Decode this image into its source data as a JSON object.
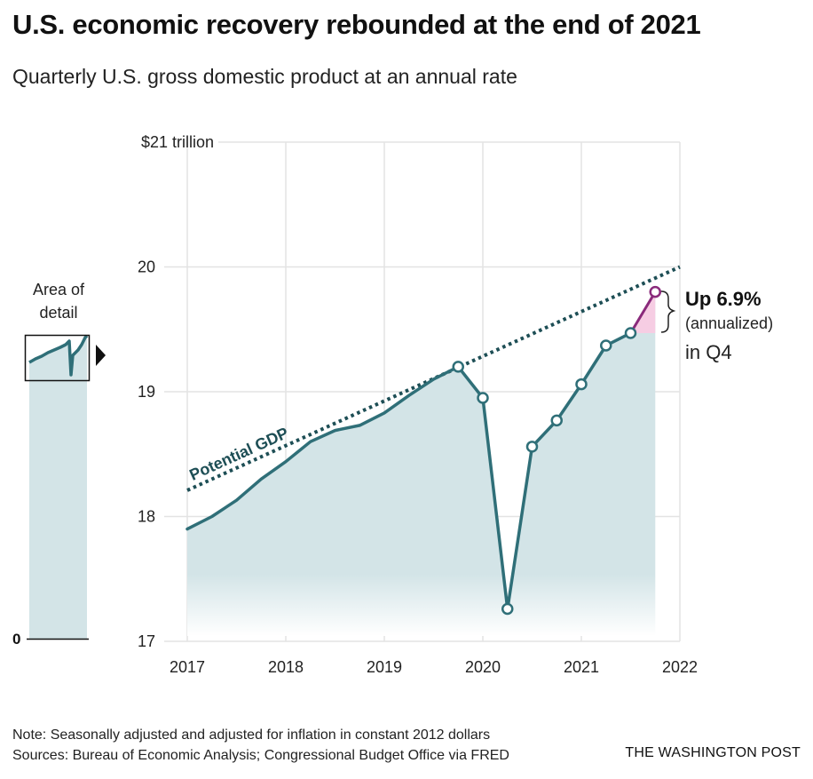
{
  "title": "U.S. economic recovery rebounded at the end of 2021",
  "subtitle": "Quarterly U.S. gross domestic product at an annual rate",
  "note": "Note: Seasonally adjusted and adjusted for inflation in constant 2012 dollars",
  "sources": "Sources: Bureau of Economic Analysis; Congressional Budget Office via FRED",
  "credit": "THE WASHINGTON POST",
  "colors": {
    "area": "#d3e4e7",
    "line": "#2f6f78",
    "potential": "#1d4e55",
    "highlight": "#8a2a7b",
    "highlight_fill": "#f6cde3",
    "grid": "#e3e3e3"
  },
  "chart_data": {
    "type": "area",
    "ylabel": "",
    "ylim": [
      17,
      21
    ],
    "xlim": [
      2017,
      2022
    ],
    "y_ticks": [
      {
        "value": 21,
        "label": "$21 trillion"
      },
      {
        "value": 20,
        "label": "20"
      },
      {
        "value": 19,
        "label": "19"
      },
      {
        "value": 18,
        "label": "18"
      },
      {
        "value": 17,
        "label": "17"
      }
    ],
    "x_ticks": [
      "2017",
      "2018",
      "2019",
      "2020",
      "2021",
      "2022"
    ],
    "series": [
      {
        "type": "area",
        "x": [
          "2017 Q1",
          "2017 Q2",
          "2017 Q3",
          "2017 Q4",
          "2018 Q1",
          "2018 Q2",
          "2018 Q3",
          "2018 Q4",
          "2019 Q1",
          "2019 Q2",
          "2019 Q3",
          "2019 Q4",
          "2020 Q1",
          "2020 Q2",
          "2020 Q3",
          "2020 Q4",
          "2021 Q1",
          "2021 Q2",
          "2021 Q3",
          "2021 Q4"
        ],
        "values": [
          17.9,
          18.0,
          18.13,
          18.3,
          18.44,
          18.6,
          18.69,
          18.73,
          18.83,
          18.97,
          19.1,
          19.2,
          18.95,
          17.26,
          18.56,
          18.77,
          19.06,
          19.37,
          19.47,
          19.8
        ]
      },
      {
        "name": "Potential GDP",
        "type": "line",
        "style": "dotted",
        "x": [
          "2017 Q1",
          "2022 Q1"
        ],
        "values": [
          18.21,
          20.0
        ]
      }
    ],
    "markers_from": "2019 Q4",
    "highlight": {
      "from": "2021 Q3",
      "to": "2021 Q4"
    },
    "annotations": {
      "potential_label": "Potential GDP",
      "up_value": "Up 6.9%",
      "up_sub": "(annualized)",
      "up_period": "in Q4"
    },
    "inset": {
      "label_line1": "Area of",
      "label_line2": "detail",
      "zero_label": "0"
    }
  }
}
